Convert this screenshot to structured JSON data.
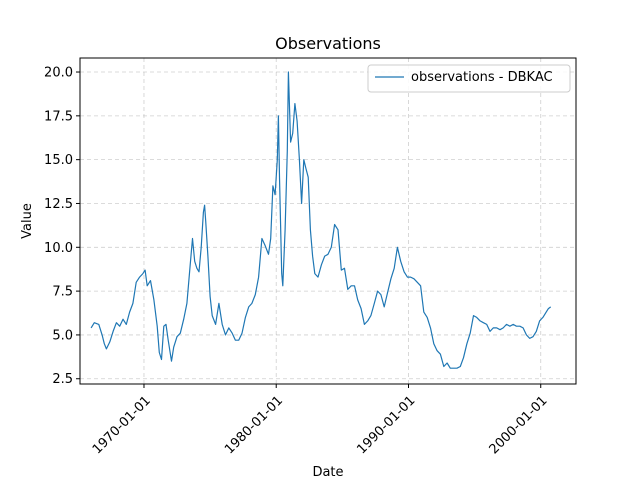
{
  "chart_data": {
    "type": "line",
    "title": "Observations",
    "xlabel": "Date",
    "ylabel": "Value",
    "x_range": [
      "1965-03-01",
      "2002-09-01"
    ],
    "ylim": [
      2.2,
      20.8
    ],
    "y_ticks": [
      2.5,
      5.0,
      7.5,
      10.0,
      12.5,
      15.0,
      17.5,
      20.0
    ],
    "y_tick_labels": [
      "2.5",
      "5.0",
      "7.5",
      "10.0",
      "12.5",
      "15.0",
      "17.5",
      "20.0"
    ],
    "x_ticks": [
      "1970-01-01",
      "1980-01-01",
      "1990-01-01",
      "2000-01-01"
    ],
    "x_tick_labels": [
      "1970-01-01",
      "1980-01-01",
      "1990-01-01",
      "2000-01-01"
    ],
    "grid": true,
    "legend_position": "top-right",
    "series": [
      {
        "name": "observations - DBKAC",
        "color": "#1f77b4",
        "points": [
          [
            "1966-01-01",
            5.4
          ],
          [
            "1966-04-01",
            5.7
          ],
          [
            "1966-08-01",
            5.6
          ],
          [
            "1966-11-01",
            5.0
          ],
          [
            "1967-01-01",
            4.5
          ],
          [
            "1967-03-01",
            4.2
          ],
          [
            "1967-06-01",
            4.6
          ],
          [
            "1967-09-01",
            5.2
          ],
          [
            "1967-12-01",
            5.7
          ],
          [
            "1968-03-01",
            5.5
          ],
          [
            "1968-06-01",
            5.9
          ],
          [
            "1968-09-01",
            5.6
          ],
          [
            "1968-12-01",
            6.3
          ],
          [
            "1969-03-01",
            6.8
          ],
          [
            "1969-06-01",
            8.0
          ],
          [
            "1969-09-01",
            8.3
          ],
          [
            "1969-12-01",
            8.5
          ],
          [
            "1970-02-01",
            8.7
          ],
          [
            "1970-04-01",
            7.8
          ],
          [
            "1970-07-01",
            8.1
          ],
          [
            "1970-10-01",
            7.0
          ],
          [
            "1971-01-01",
            5.5
          ],
          [
            "1971-03-01",
            4.0
          ],
          [
            "1971-05-01",
            3.6
          ],
          [
            "1971-07-01",
            5.5
          ],
          [
            "1971-09-01",
            5.6
          ],
          [
            "1971-11-01",
            4.7
          ],
          [
            "1972-01-01",
            3.9
          ],
          [
            "1972-02-01",
            3.5
          ],
          [
            "1972-04-01",
            4.3
          ],
          [
            "1972-07-01",
            4.9
          ],
          [
            "1972-10-01",
            5.1
          ],
          [
            "1973-01-01",
            5.9
          ],
          [
            "1973-04-01",
            6.8
          ],
          [
            "1973-07-01",
            9.0
          ],
          [
            "1973-09-01",
            10.5
          ],
          [
            "1973-11-01",
            9.2
          ],
          [
            "1974-01-01",
            8.8
          ],
          [
            "1974-03-01",
            8.6
          ],
          [
            "1974-05-01",
            10.0
          ],
          [
            "1974-07-01",
            12.0
          ],
          [
            "1974-08-01",
            12.4
          ],
          [
            "1974-09-01",
            11.5
          ],
          [
            "1974-11-01",
            9.5
          ],
          [
            "1975-01-01",
            7.2
          ],
          [
            "1975-03-01",
            6.1
          ],
          [
            "1975-06-01",
            5.6
          ],
          [
            "1975-09-01",
            6.8
          ],
          [
            "1975-12-01",
            5.6
          ],
          [
            "1976-03-01",
            5.0
          ],
          [
            "1976-06-01",
            5.4
          ],
          [
            "1976-09-01",
            5.1
          ],
          [
            "1976-12-01",
            4.7
          ],
          [
            "1977-03-01",
            4.7
          ],
          [
            "1977-06-01",
            5.1
          ],
          [
            "1977-09-01",
            6.0
          ],
          [
            "1977-12-01",
            6.6
          ],
          [
            "1978-03-01",
            6.8
          ],
          [
            "1978-06-01",
            7.3
          ],
          [
            "1978-09-01",
            8.3
          ],
          [
            "1978-12-01",
            10.5
          ],
          [
            "1979-03-01",
            10.1
          ],
          [
            "1979-06-01",
            9.6
          ],
          [
            "1979-08-01",
            10.5
          ],
          [
            "1979-10-01",
            13.5
          ],
          [
            "1979-12-01",
            13.0
          ],
          [
            "1980-02-01",
            15.0
          ],
          [
            "1980-03-01",
            17.5
          ],
          [
            "1980-04-01",
            14.0
          ],
          [
            "1980-06-01",
            8.5
          ],
          [
            "1980-07-01",
            7.8
          ],
          [
            "1980-09-01",
            11.0
          ],
          [
            "1980-11-01",
            15.5
          ],
          [
            "1980-12-01",
            20.0
          ],
          [
            "1981-02-01",
            16.0
          ],
          [
            "1981-04-01",
            16.5
          ],
          [
            "1981-06-01",
            18.2
          ],
          [
            "1981-08-01",
            17.2
          ],
          [
            "1981-10-01",
            15.0
          ],
          [
            "1981-12-01",
            12.5
          ],
          [
            "1982-02-01",
            15.0
          ],
          [
            "1982-04-01",
            14.5
          ],
          [
            "1982-06-01",
            14.0
          ],
          [
            "1982-08-01",
            11.0
          ],
          [
            "1982-10-01",
            9.5
          ],
          [
            "1982-12-01",
            8.5
          ],
          [
            "1983-03-01",
            8.3
          ],
          [
            "1983-06-01",
            9.0
          ],
          [
            "1983-09-01",
            9.5
          ],
          [
            "1983-12-01",
            9.6
          ],
          [
            "1984-03-01",
            10.0
          ],
          [
            "1984-06-01",
            11.3
          ],
          [
            "1984-09-01",
            11.0
          ],
          [
            "1984-12-01",
            8.7
          ],
          [
            "1985-03-01",
            8.8
          ],
          [
            "1985-06-01",
            7.6
          ],
          [
            "1985-09-01",
            7.8
          ],
          [
            "1985-12-01",
            7.8
          ],
          [
            "1986-03-01",
            7.0
          ],
          [
            "1986-06-01",
            6.5
          ],
          [
            "1986-09-01",
            5.6
          ],
          [
            "1986-12-01",
            5.8
          ],
          [
            "1987-03-01",
            6.1
          ],
          [
            "1987-06-01",
            6.8
          ],
          [
            "1987-09-01",
            7.5
          ],
          [
            "1987-12-01",
            7.3
          ],
          [
            "1988-03-01",
            6.6
          ],
          [
            "1988-06-01",
            7.4
          ],
          [
            "1988-09-01",
            8.2
          ],
          [
            "1988-12-01",
            8.8
          ],
          [
            "1989-03-01",
            10.0
          ],
          [
            "1989-06-01",
            9.2
          ],
          [
            "1989-09-01",
            8.6
          ],
          [
            "1989-12-01",
            8.3
          ],
          [
            "1990-03-01",
            8.3
          ],
          [
            "1990-06-01",
            8.2
          ],
          [
            "1990-09-01",
            8.0
          ],
          [
            "1990-12-01",
            7.8
          ],
          [
            "1991-03-01",
            6.3
          ],
          [
            "1991-06-01",
            6.0
          ],
          [
            "1991-09-01",
            5.4
          ],
          [
            "1991-12-01",
            4.5
          ],
          [
            "1992-03-01",
            4.1
          ],
          [
            "1992-06-01",
            3.9
          ],
          [
            "1992-09-01",
            3.2
          ],
          [
            "1992-12-01",
            3.4
          ],
          [
            "1993-03-01",
            3.1
          ],
          [
            "1993-06-01",
            3.1
          ],
          [
            "1993-09-01",
            3.1
          ],
          [
            "1993-12-01",
            3.2
          ],
          [
            "1994-03-01",
            3.7
          ],
          [
            "1994-06-01",
            4.5
          ],
          [
            "1994-09-01",
            5.1
          ],
          [
            "1994-12-01",
            6.1
          ],
          [
            "1995-03-01",
            6.0
          ],
          [
            "1995-06-01",
            5.8
          ],
          [
            "1995-09-01",
            5.7
          ],
          [
            "1995-12-01",
            5.6
          ],
          [
            "1996-03-01",
            5.2
          ],
          [
            "1996-06-01",
            5.4
          ],
          [
            "1996-09-01",
            5.4
          ],
          [
            "1996-12-01",
            5.3
          ],
          [
            "1997-03-01",
            5.4
          ],
          [
            "1997-06-01",
            5.6
          ],
          [
            "1997-09-01",
            5.5
          ],
          [
            "1997-12-01",
            5.6
          ],
          [
            "1998-03-01",
            5.5
          ],
          [
            "1998-06-01",
            5.5
          ],
          [
            "1998-09-01",
            5.4
          ],
          [
            "1998-12-01",
            5.0
          ],
          [
            "1999-03-01",
            4.8
          ],
          [
            "1999-06-01",
            4.9
          ],
          [
            "1999-09-01",
            5.2
          ],
          [
            "1999-12-01",
            5.8
          ],
          [
            "2000-03-01",
            6.0
          ],
          [
            "2000-06-01",
            6.3
          ],
          [
            "2000-08-01",
            6.5
          ],
          [
            "2000-10-01",
            6.6
          ]
        ]
      }
    ]
  }
}
